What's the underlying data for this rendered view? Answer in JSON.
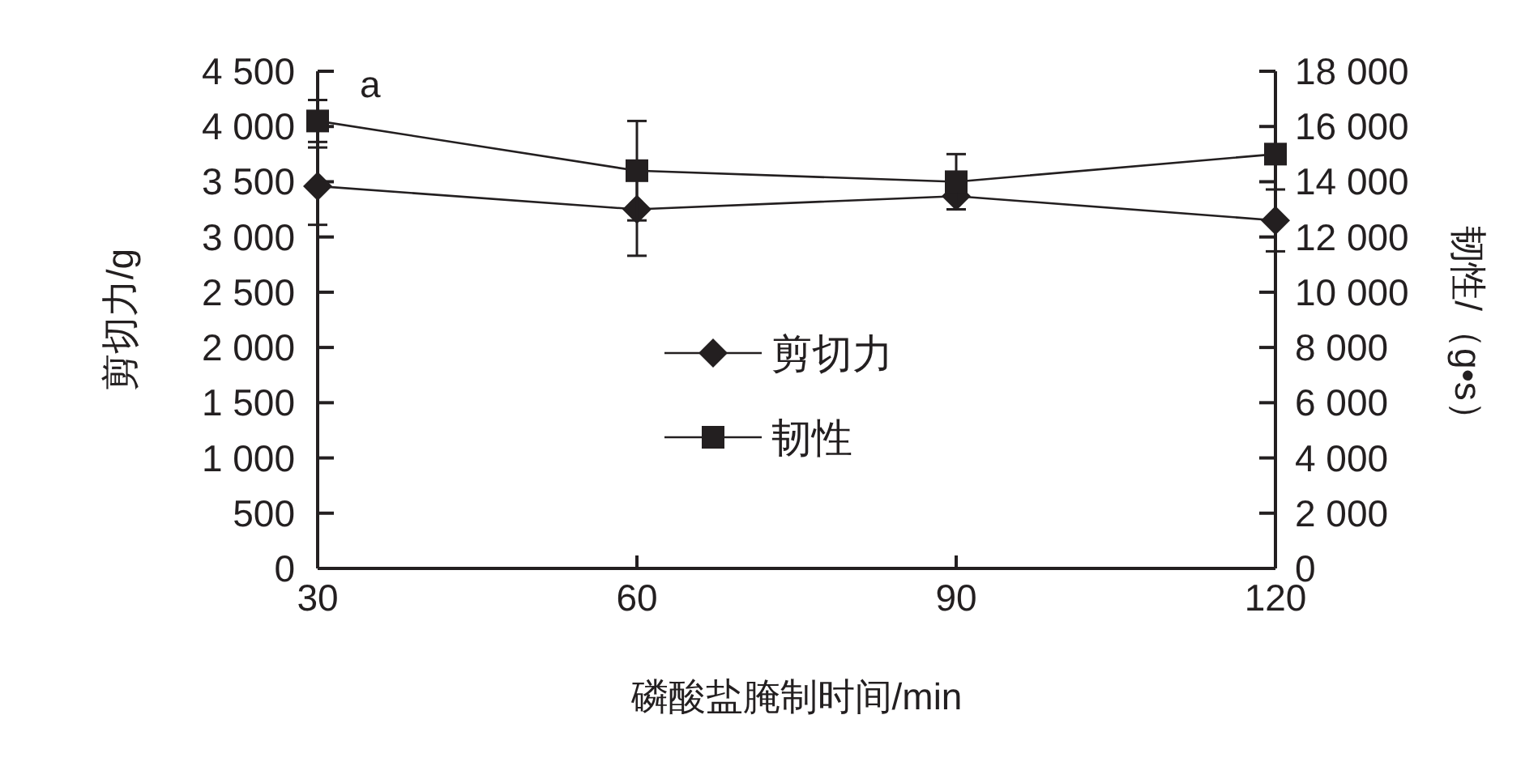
{
  "chart_data": {
    "type": "line",
    "x": [
      30,
      60,
      90,
      120
    ],
    "xlim": [
      30,
      120
    ],
    "xticks": [
      30,
      60,
      90,
      120
    ],
    "xlabel": "磷酸盐腌制时间/min",
    "ylabel": "剪切力/g",
    "y2label": "韧性/（g•s）",
    "ylim": [
      0,
      4500
    ],
    "yticks": [
      {
        "value": 0,
        "label": "0"
      },
      {
        "value": 500,
        "label": "500"
      },
      {
        "value": 1000,
        "label": "1 000"
      },
      {
        "value": 1500,
        "label": "1 500"
      },
      {
        "value": 2000,
        "label": "2 000"
      },
      {
        "value": 2500,
        "label": "2 500"
      },
      {
        "value": 3000,
        "label": "3 000"
      },
      {
        "value": 3500,
        "label": "3 500"
      },
      {
        "value": 4000,
        "label": "4 000"
      },
      {
        "value": 4500,
        "label": "4 500"
      }
    ],
    "y2lim": [
      0,
      18000
    ],
    "y2ticks": [
      {
        "value": 0,
        "label": "0"
      },
      {
        "value": 2000,
        "label": "2 000"
      },
      {
        "value": 4000,
        "label": "4 000"
      },
      {
        "value": 6000,
        "label": "6 000"
      },
      {
        "value": 8000,
        "label": "8 000"
      },
      {
        "value": 10000,
        "label": "10 000"
      },
      {
        "value": 12000,
        "label": "12 000"
      },
      {
        "value": 14000,
        "label": "14 000"
      },
      {
        "value": 16000,
        "label": "16 000"
      },
      {
        "value": 18000,
        "label": "18 000"
      }
    ],
    "legend": "center",
    "annotations": [
      "a"
    ],
    "series": [
      {
        "name": "剪切力",
        "color": "#231f20",
        "marker": "diamond",
        "values": [
          3460,
          3250,
          3370,
          3150
        ],
        "errors": [
          350,
          420,
          120,
          280
        ]
      },
      {
        "name": "韧性",
        "color": "#231f20",
        "marker": "square",
        "axis": "y2",
        "values": [
          16200,
          14400,
          14000,
          15000
        ],
        "errors": [
          760,
          1800,
          1000,
          null
        ]
      }
    ]
  }
}
